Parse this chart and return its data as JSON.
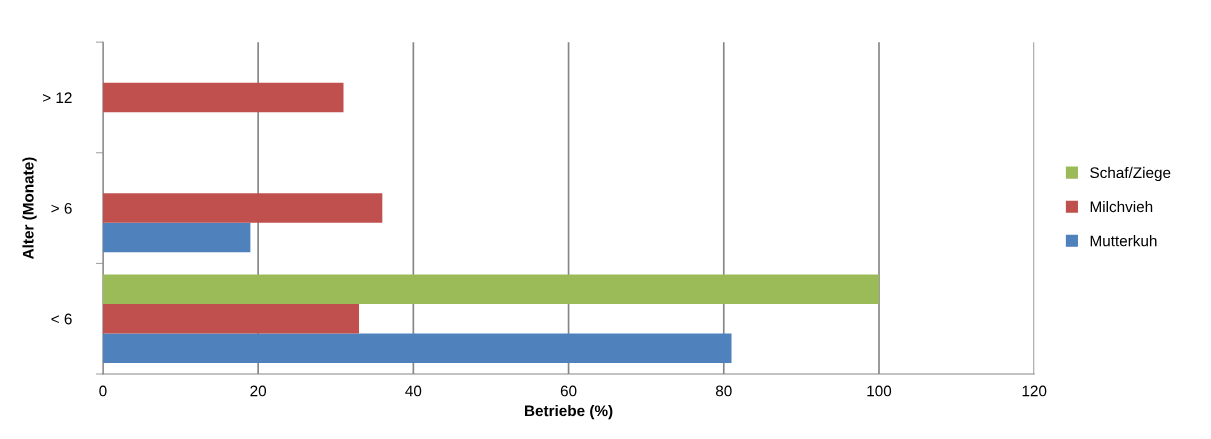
{
  "chart_data": {
    "type": "bar",
    "orientation": "horizontal",
    "categories": [
      "> 12",
      "> 6",
      "< 6"
    ],
    "series": [
      {
        "name": "Mutterkuh",
        "color": "#4f81bd",
        "values": [
          null,
          19,
          81
        ]
      },
      {
        "name": "Milchvieh",
        "color": "#c0504d",
        "values": [
          31,
          36,
          33
        ]
      },
      {
        "name": "Schaf/Ziege",
        "color": "#9bbb59",
        "values": [
          null,
          null,
          100
        ]
      }
    ],
    "xlabel": "Betriebe (%)",
    "ylabel": "Alter (Monate)",
    "xlim": [
      0,
      120
    ],
    "xticks": [
      0,
      20,
      40,
      60,
      80,
      100,
      120
    ],
    "grid": "x",
    "legend": "right"
  }
}
